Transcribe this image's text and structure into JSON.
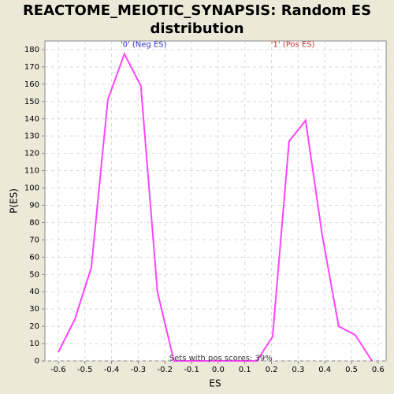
{
  "chart_data": {
    "type": "line",
    "title": "REACTOME_MEIOTIC_SYNAPSIS: Random ES distribution",
    "xlabel": "ES",
    "ylabel": "P(ES)",
    "x": [
      -0.6,
      -0.538,
      -0.476,
      -0.414,
      -0.352,
      -0.29,
      -0.228,
      -0.166,
      -0.104,
      -0.042,
      0.02,
      0.082,
      0.145,
      0.204,
      0.266,
      0.328,
      0.39,
      0.452,
      0.514,
      0.577
    ],
    "series": [
      {
        "name": "P(ES)",
        "color": "#ff44ff",
        "values": [
          5,
          24,
          54,
          151,
          177.5,
          159,
          40,
          0,
          0,
          0,
          0,
          0,
          0,
          14,
          127,
          139,
          73,
          20,
          15,
          0
        ]
      }
    ],
    "xlim": [
      -0.65,
      0.63
    ],
    "ylim": [
      0,
      185
    ],
    "xticks": [
      -0.6,
      -0.5,
      -0.4,
      -0.3,
      -0.2,
      -0.1,
      {
        "value": 0,
        "label": "0.0"
      },
      0.1,
      0.2,
      0.3,
      0.4,
      0.5,
      0.6
    ],
    "yticks": [
      0,
      10,
      20,
      30,
      40,
      50,
      60,
      70,
      80,
      90,
      100,
      110,
      120,
      130,
      140,
      150,
      160,
      170,
      180
    ],
    "grid": true,
    "annotations": [
      {
        "text": "'0' (Neg ES)",
        "x": -0.28,
        "y": 183,
        "color": "#3333cc"
      },
      {
        "text": "'1' (Pos ES)",
        "x": 0.28,
        "y": 183,
        "color": "#cc3333"
      },
      {
        "text": "Sets with pos scores: 39%",
        "x": 0.01,
        "y": 1.5,
        "color": "#333333"
      }
    ]
  }
}
